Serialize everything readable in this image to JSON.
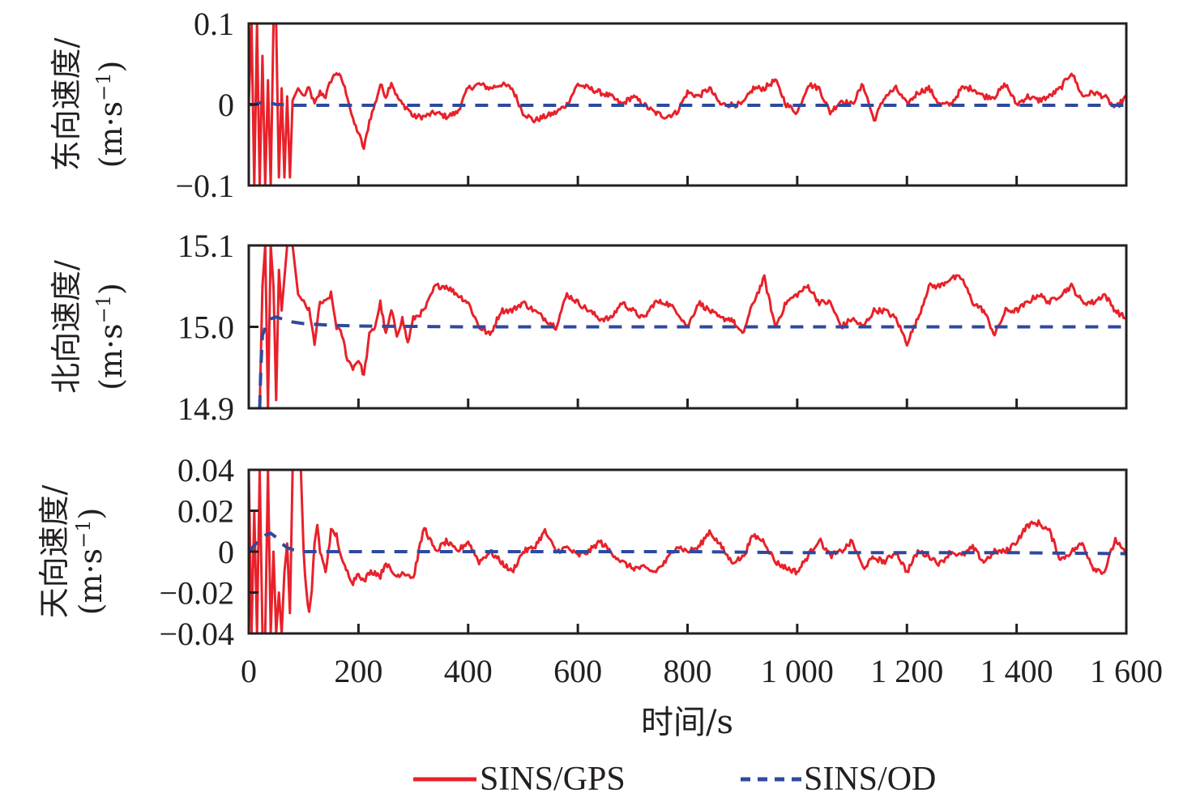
{
  "chart_data": {
    "type": "line",
    "xlabel": "时间/s",
    "xlim": [
      0,
      1600
    ],
    "xticks": [
      0,
      200,
      400,
      600,
      800,
      1000,
      1200,
      1400,
      1600
    ],
    "xtick_labels": [
      "0",
      "200",
      "400",
      "600",
      "800",
      "1 000",
      "1 200",
      "1 400",
      "1 600"
    ],
    "legend": {
      "placement": "bottom-center",
      "entries": [
        {
          "name": "SINS/GPS",
          "color": "#e8212a",
          "style": "solid"
        },
        {
          "name": "SINS/OD",
          "color": "#2e4a9e",
          "style": "dashed"
        }
      ]
    },
    "colors": {
      "frame": "#231f20",
      "gps": "#e8212a",
      "od": "#2e4a9e"
    },
    "panels": [
      {
        "id": "east",
        "ylabel_line1": "东向速度/",
        "ylabel_line2": "(m·s",
        "ylabel_sup": "−1",
        "ylabel_close": ")",
        "ylim": [
          -0.1,
          0.1
        ],
        "yticks": [
          -0.1,
          0,
          0.1
        ],
        "ytick_labels": [
          "−0.1",
          "0",
          "0.1"
        ],
        "series": [
          {
            "name": "SINS/GPS",
            "x": [
              0,
              5,
              10,
              15,
              20,
              25,
              30,
              35,
              40,
              45,
              50,
              55,
              60,
              65,
              70,
              75,
              80,
              90,
              100,
              110,
              120,
              130,
              140,
              150,
              160,
              170,
              180,
              190,
              200,
              210,
              220,
              230,
              240,
              250,
              260,
              270,
              280,
              290,
              300,
              320,
              340,
              360,
              380,
              400,
              420,
              440,
              460,
              480,
              500,
              520,
              540,
              560,
              580,
              600,
              620,
              640,
              660,
              680,
              700,
              720,
              740,
              760,
              780,
              800,
              820,
              840,
              860,
              880,
              900,
              920,
              940,
              960,
              980,
              1000,
              1020,
              1040,
              1060,
              1080,
              1100,
              1120,
              1140,
              1160,
              1180,
              1200,
              1220,
              1240,
              1260,
              1280,
              1300,
              1320,
              1340,
              1360,
              1380,
              1400,
              1420,
              1440,
              1460,
              1480,
              1500,
              1520,
              1540,
              1560,
              1580,
              1600
            ],
            "values": [
              0,
              0.1,
              -0.1,
              0.1,
              -0.1,
              0.06,
              -0.1,
              0.03,
              -0.1,
              0.1,
              0.1,
              -0.09,
              0.02,
              -0.09,
              0.01,
              -0.09,
              0.005,
              0.02,
              0.01,
              0.02,
              0.0,
              0.015,
              0.01,
              0.03,
              0.04,
              0.03,
              0.01,
              -0.02,
              -0.035,
              -0.055,
              -0.02,
              0.0,
              0.025,
              0.01,
              0.028,
              0.01,
              0.0,
              -0.005,
              -0.015,
              -0.015,
              -0.01,
              -0.015,
              -0.01,
              0.02,
              0.025,
              0.02,
              0.025,
              0.02,
              -0.01,
              -0.02,
              -0.015,
              -0.01,
              0.0,
              0.025,
              0.02,
              0.015,
              0.01,
              0.0,
              0.01,
              0.0,
              -0.01,
              -0.015,
              -0.01,
              0.015,
              0.01,
              0.02,
              0.0,
              0.0,
              0.0,
              0.02,
              0.02,
              0.03,
              0.0,
              -0.01,
              0.025,
              0.02,
              -0.01,
              0.005,
              0.0,
              0.025,
              -0.02,
              0.01,
              0.02,
              0.0,
              0.015,
              0.02,
              0.0,
              0.0,
              0.02,
              0.02,
              0.01,
              0.01,
              0.025,
              0.0,
              0.01,
              0.005,
              0.01,
              0.02,
              0.04,
              0.01,
              0.015,
              0.01,
              -0.005,
              0.01
            ]
          },
          {
            "name": "SINS/OD",
            "x": [
              0,
              10,
              20,
              30,
              40,
              50,
              60,
              80,
              100,
              150,
              200,
              400,
              600,
              800,
              1000,
              1200,
              1400,
              1600
            ],
            "values": [
              0,
              0.0,
              0.002,
              0.002,
              0.002,
              0.0,
              0.0,
              -0.001,
              -0.001,
              -0.001,
              -0.001,
              -0.001,
              -0.001,
              -0.001,
              -0.001,
              -0.001,
              -0.001,
              -0.001
            ]
          }
        ]
      },
      {
        "id": "north",
        "ylabel_line1": "北向速度/",
        "ylabel_line2": "(m·s",
        "ylabel_sup": "−1",
        "ylabel_close": ")",
        "ylim": [
          14.9,
          15.1
        ],
        "yticks": [
          14.9,
          15.0,
          15.1
        ],
        "ytick_labels": [
          "14.9",
          "15.0",
          "15.1"
        ],
        "series": [
          {
            "name": "SINS/GPS",
            "x": [
              20,
              25,
              30,
              35,
              40,
              45,
              50,
              55,
              60,
              65,
              70,
              80,
              90,
              100,
              110,
              120,
              130,
              140,
              150,
              160,
              170,
              180,
              190,
              200,
              210,
              220,
              230,
              240,
              250,
              260,
              270,
              280,
              290,
              300,
              320,
              340,
              360,
              380,
              400,
              420,
              440,
              460,
              480,
              500,
              520,
              540,
              560,
              580,
              600,
              620,
              640,
              660,
              680,
              700,
              720,
              740,
              760,
              780,
              800,
              820,
              840,
              860,
              880,
              900,
              920,
              940,
              960,
              980,
              1000,
              1020,
              1040,
              1060,
              1080,
              1100,
              1120,
              1140,
              1160,
              1180,
              1200,
              1220,
              1240,
              1260,
              1280,
              1300,
              1320,
              1340,
              1360,
              1380,
              1400,
              1420,
              1440,
              1460,
              1480,
              1500,
              1520,
              1540,
              1560,
              1580,
              1600
            ],
            "values": [
              14.9,
              15.05,
              15.1,
              14.9,
              15.1,
              15.05,
              14.91,
              15.07,
              15.02,
              15.06,
              15.1,
              15.1,
              15.04,
              15.03,
              15.02,
              14.98,
              15.03,
              15.03,
              15.04,
              15.0,
              14.99,
              14.96,
              14.95,
              14.96,
              14.94,
              14.99,
              15.0,
              15.03,
              14.99,
              15.02,
              14.99,
              15.01,
              14.98,
              15.01,
              15.02,
              15.05,
              15.05,
              15.04,
              15.03,
              15.0,
              14.99,
              15.02,
              15.02,
              15.03,
              15.02,
              15.01,
              15.0,
              15.04,
              15.03,
              15.02,
              15.01,
              15.01,
              15.03,
              15.02,
              15.01,
              15.03,
              15.03,
              15.02,
              15.0,
              15.03,
              15.02,
              15.01,
              15.01,
              14.99,
              15.03,
              15.06,
              15.0,
              15.03,
              15.04,
              15.05,
              15.03,
              15.03,
              15.0,
              15.01,
              15.0,
              15.02,
              15.02,
              15.01,
              14.98,
              15.01,
              15.05,
              15.05,
              15.06,
              15.06,
              15.03,
              15.02,
              14.99,
              15.02,
              15.02,
              15.03,
              15.04,
              15.03,
              15.04,
              15.05,
              15.03,
              15.03,
              15.04,
              15.02,
              15.01
            ]
          },
          {
            "name": "SINS/OD",
            "x": [
              20,
              22,
              25,
              28,
              30,
              35,
              40,
              50,
              60,
              80,
              100,
              150,
              200,
              400,
              600,
              800,
              1000,
              1200,
              1400,
              1600
            ],
            "values": [
              14.9,
              14.95,
              14.99,
              14.995,
              15.0,
              15.005,
              15.01,
              15.012,
              15.01,
              15.006,
              15.004,
              15.002,
              15.001,
              15.0,
              15.0,
              15.0,
              15.0,
              15.0,
              15.0,
              15.0
            ]
          }
        ]
      },
      {
        "id": "up",
        "ylabel_line1": "天向速度/",
        "ylabel_line2": "(m·s",
        "ylabel_sup": "−1",
        "ylabel_close": ")",
        "ylim": [
          -0.04,
          0.04
        ],
        "yticks": [
          -0.04,
          -0.02,
          0,
          0.02,
          0.04
        ],
        "ytick_labels": [
          "−0.04",
          "−0.02",
          "0",
          "0.02",
          "0.04"
        ],
        "series": [
          {
            "name": "SINS/GPS",
            "x": [
              0,
              5,
              10,
              15,
              20,
              25,
              30,
              35,
              40,
              45,
              50,
              55,
              60,
              65,
              70,
              75,
              80,
              85,
              90,
              95,
              100,
              105,
              110,
              115,
              120,
              125,
              130,
              140,
              150,
              160,
              170,
              180,
              190,
              200,
              210,
              220,
              230,
              240,
              250,
              260,
              270,
              280,
              290,
              300,
              310,
              320,
              340,
              360,
              380,
              400,
              420,
              440,
              460,
              480,
              500,
              520,
              540,
              560,
              580,
              600,
              620,
              640,
              660,
              680,
              700,
              720,
              740,
              760,
              780,
              800,
              820,
              840,
              860,
              880,
              900,
              920,
              940,
              960,
              980,
              1000,
              1020,
              1040,
              1060,
              1080,
              1100,
              1120,
              1140,
              1160,
              1180,
              1200,
              1220,
              1240,
              1260,
              1280,
              1300,
              1320,
              1340,
              1360,
              1380,
              1400,
              1420,
              1440,
              1460,
              1480,
              1500,
              1520,
              1540,
              1560,
              1580,
              1600
            ],
            "values": [
              0.04,
              -0.04,
              0.02,
              -0.04,
              0.04,
              -0.04,
              -0.04,
              0.04,
              -0.04,
              0.0,
              -0.04,
              -0.02,
              -0.04,
              -0.01,
              0.004,
              -0.03,
              0.04,
              0.04,
              0.04,
              0.04,
              0.0,
              -0.02,
              -0.03,
              -0.02,
              0.005,
              0.013,
              0.0,
              -0.01,
              0.01,
              0.008,
              -0.005,
              -0.01,
              -0.015,
              -0.01,
              -0.015,
              -0.01,
              -0.01,
              -0.012,
              -0.005,
              -0.01,
              -0.012,
              -0.01,
              -0.011,
              -0.013,
              0.0,
              0.012,
              0.0,
              0.005,
              0.0,
              0.005,
              -0.005,
              0.0,
              -0.005,
              -0.01,
              0.0,
              0.002,
              0.01,
              0.0,
              0.002,
              -0.002,
              0.0,
              0.005,
              0.0,
              -0.005,
              -0.008,
              -0.008,
              -0.01,
              -0.005,
              0.003,
              0.0,
              0.002,
              0.01,
              0.003,
              -0.005,
              -0.003,
              0.008,
              0.005,
              -0.005,
              -0.008,
              -0.01,
              -0.002,
              0.006,
              -0.002,
              0.0,
              0.005,
              -0.008,
              -0.003,
              -0.005,
              0.0,
              -0.01,
              0.0,
              -0.002,
              -0.006,
              0.0,
              -0.002,
              0.002,
              -0.005,
              0.0,
              0.0,
              0.005,
              0.013,
              0.014,
              0.01,
              -0.004,
              0.0,
              0.004,
              -0.008,
              -0.01,
              0.006,
              -0.002
            ]
          },
          {
            "name": "SINS/OD",
            "x": [
              0,
              10,
              20,
              30,
              40,
              50,
              60,
              70,
              80,
              100,
              150,
              200,
              400,
              600,
              800,
              1000,
              1200,
              1400,
              1600
            ],
            "values": [
              0,
              0.003,
              0.006,
              0.008,
              0.009,
              0.007,
              0.004,
              0.002,
              0.001,
              0.0,
              0.0,
              0.0,
              0.0,
              0.0,
              0.0,
              -0.0005,
              -0.0005,
              -0.0005,
              -0.001
            ]
          }
        ]
      }
    ]
  }
}
